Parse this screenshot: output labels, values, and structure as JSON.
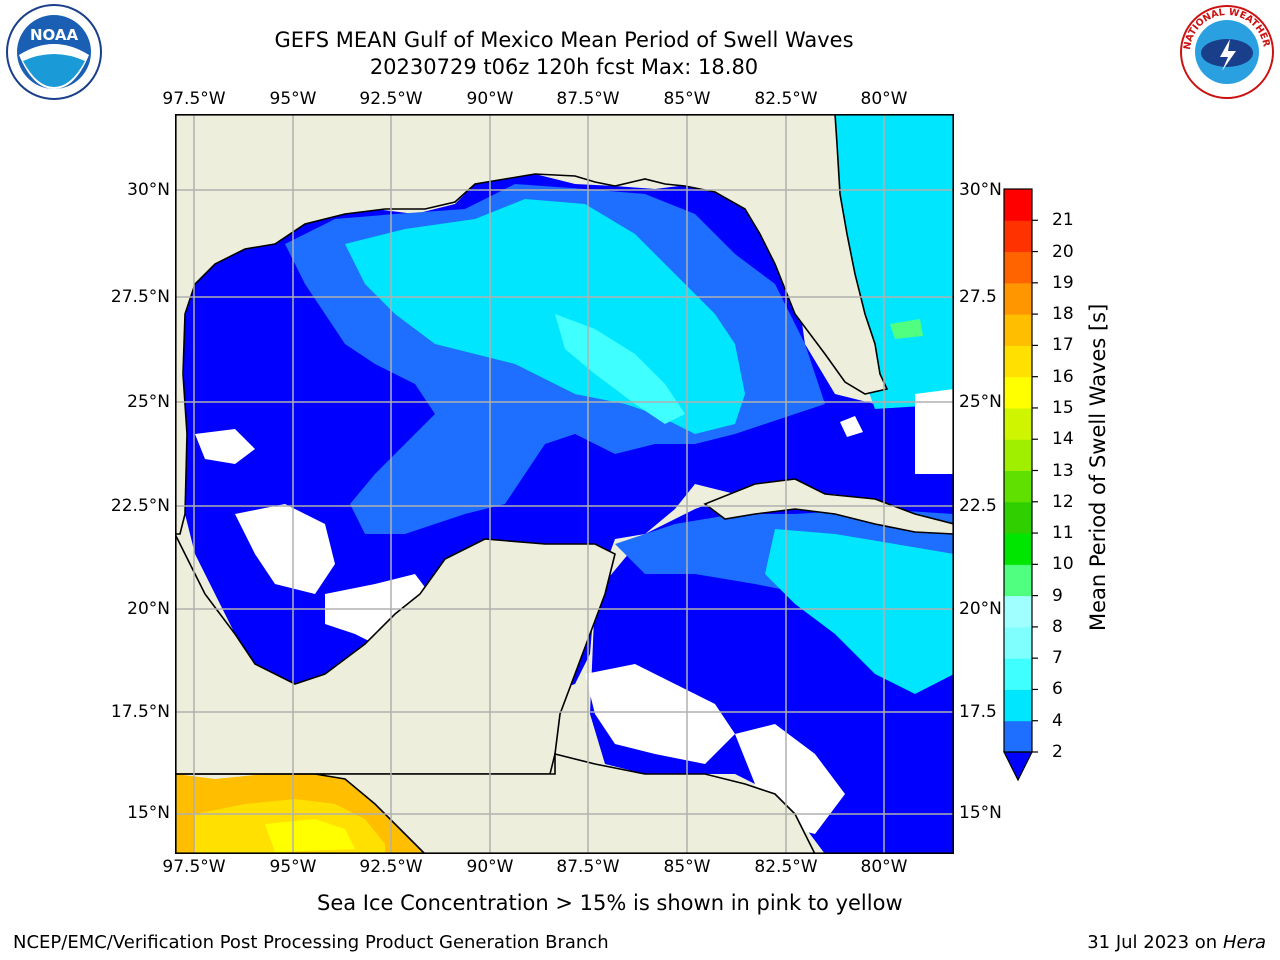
{
  "title": {
    "line1": "GEFS MEAN Gulf of Mexico Mean Period of Swell Waves",
    "line2": "20230729 t06z 120h fcst   Max: 18.80"
  },
  "logos": {
    "left": {
      "name": "noaa-logo",
      "text": "NOAA"
    },
    "right": {
      "name": "nws-logo",
      "text": "NATIONAL WEATHER SERVICE"
    }
  },
  "map": {
    "lon_ticks": [
      "97.5°W",
      "95°W",
      "92.5°W",
      "90°W",
      "87.5°W",
      "85°W",
      "82.5°W",
      "80°W"
    ],
    "lat_ticks_left": [
      "30°N",
      "27.5°N",
      "25°N",
      "22.5°N",
      "20°N",
      "17.5°N",
      "15°N"
    ],
    "lat_ticks_right": [
      "30°N",
      "27.5",
      "25°N",
      "22.5",
      "20°N",
      "17.5",
      "15°N"
    ],
    "extent": {
      "lon_min": -98.0,
      "lon_max": -78.2,
      "lat_min": 14.0,
      "lat_max": 31.8
    },
    "gridlines": true,
    "land_color": "#eeeedc",
    "ocean_dominant_color": "#0000ff"
  },
  "colorbar": {
    "label": "Mean Period of Swell Waves [s]",
    "ticks": [
      "2",
      "4",
      "6",
      "7",
      "8",
      "9",
      "10",
      "11",
      "12",
      "13",
      "14",
      "15",
      "16",
      "17",
      "18",
      "19",
      "20",
      "21"
    ],
    "colors": [
      "#1e6eff",
      "#00e6ff",
      "#40ffff",
      "#80ffff",
      "#a0ffff",
      "#50ff80",
      "#00e600",
      "#30d000",
      "#60e000",
      "#a0ef00",
      "#d0f500",
      "#ffff00",
      "#ffe000",
      "#ffbe00",
      "#ff9600",
      "#ff6400",
      "#ff3200",
      "#ff0000"
    ],
    "extend_min_color": "#0000ff"
  },
  "note": "Sea Ice Concentration > 15% is shown in pink to yellow",
  "footer": {
    "left": "NCEP/EMC/Verification Post Processing Product Generation Branch",
    "right_date": "31 Jul 2023 on ",
    "right_host": "Hera"
  }
}
